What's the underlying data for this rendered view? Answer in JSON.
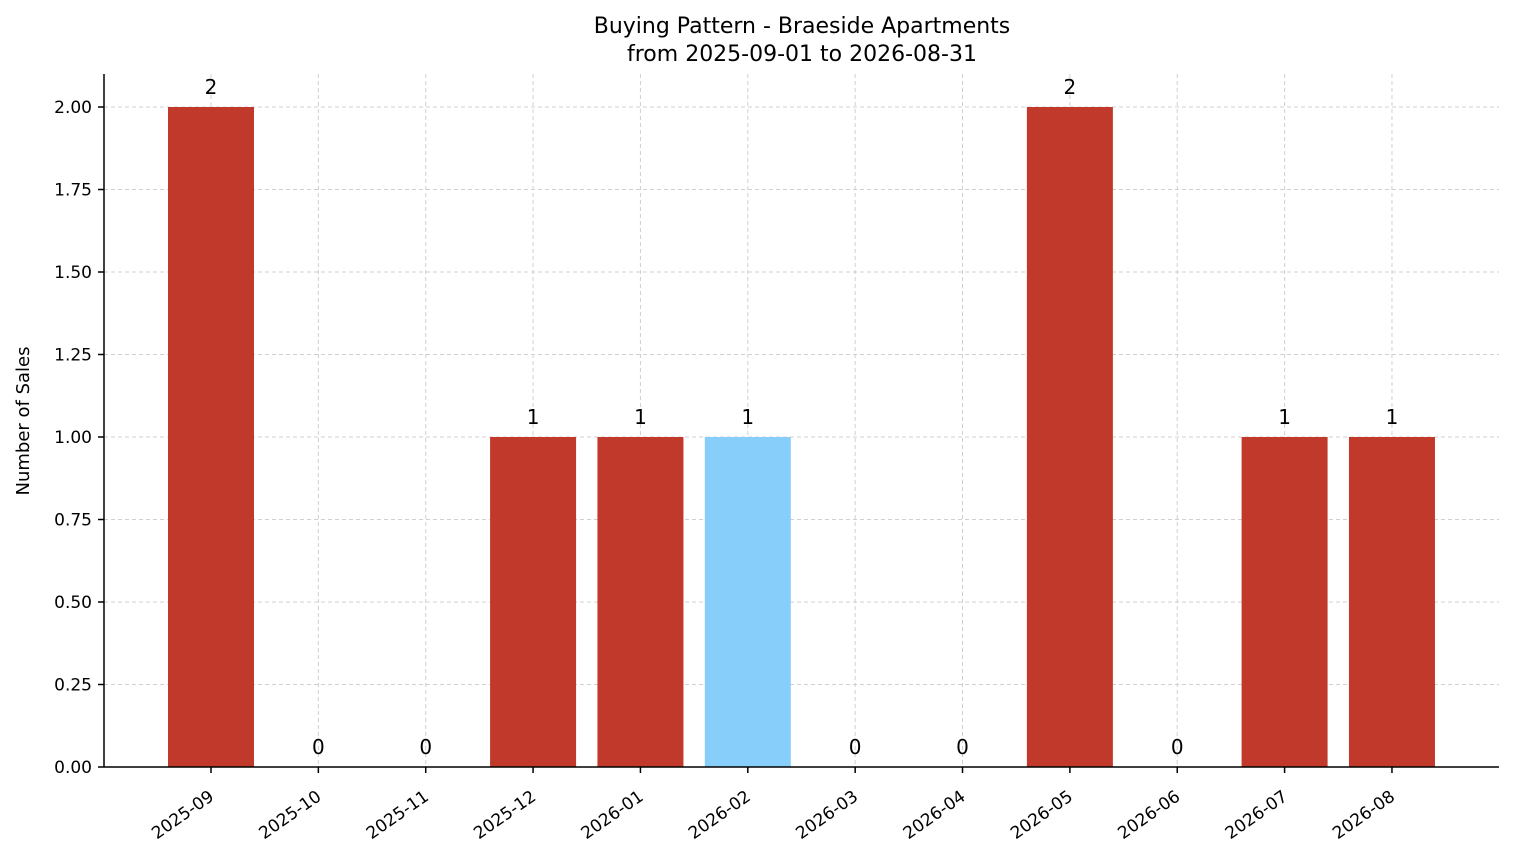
{
  "chart_data": {
    "type": "bar",
    "title": "Buying Pattern - Braeside Apartments",
    "subtitle": "from 2025-09-01 to 2026-08-31",
    "xlabel": "",
    "ylabel": "Number of Sales",
    "categories": [
      "2025-09",
      "2025-10",
      "2025-11",
      "2025-12",
      "2026-01",
      "2026-02",
      "2026-03",
      "2026-04",
      "2026-05",
      "2026-06",
      "2026-07",
      "2026-08"
    ],
    "values": [
      2,
      0,
      0,
      1,
      1,
      1,
      0,
      0,
      2,
      0,
      1,
      1
    ],
    "data_labels": [
      "2",
      "0",
      "0",
      "1",
      "1",
      "1",
      "0",
      "0",
      "2",
      "0",
      "1",
      "1"
    ],
    "ylim": [
      0,
      2.1
    ],
    "yticks": [
      0,
      0.25,
      0.5,
      0.75,
      1.0,
      1.25,
      1.5,
      1.75,
      2.0
    ],
    "ytick_labels": [
      "0.00",
      "0.25",
      "0.50",
      "0.75",
      "1.00",
      "1.25",
      "1.50",
      "1.75",
      "2.00"
    ],
    "grid": true,
    "highlight_category": "2026-02",
    "colors": {
      "bar": "#c0392b",
      "highlight": "#87cefa"
    }
  }
}
